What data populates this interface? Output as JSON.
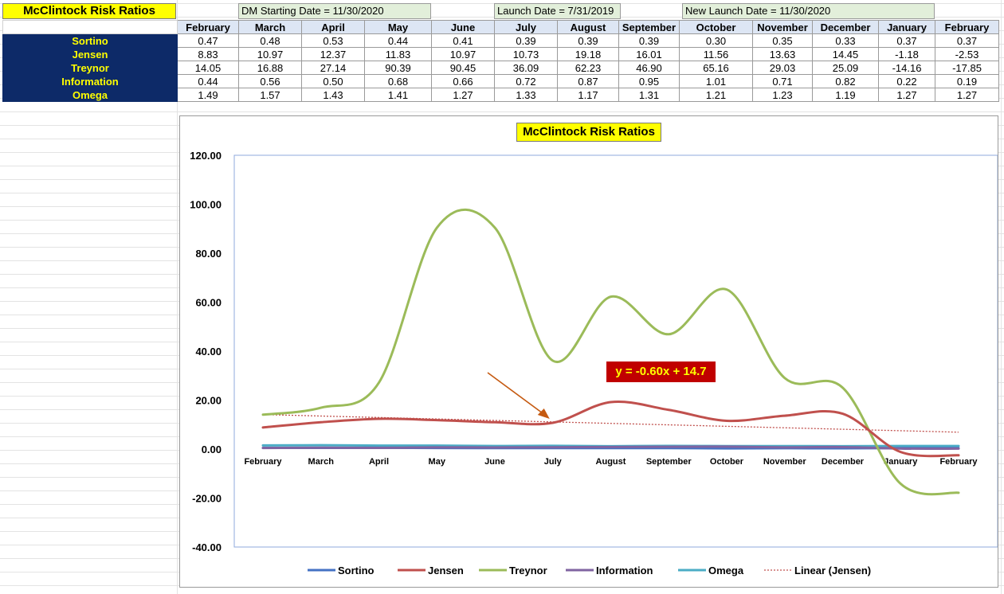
{
  "sheet": {
    "title": "McClintock Risk Ratios",
    "info": {
      "dm_start": "DM Starting Date = 11/30/2020",
      "launch": "Launch Date = 7/31/2019",
      "new_launch": "New Launch Date = 11/30/2020"
    },
    "months": [
      "February",
      "March",
      "April",
      "May",
      "June",
      "July",
      "August",
      "September",
      "October",
      "November",
      "December",
      "January",
      "February"
    ],
    "rows": [
      {
        "label": "Sortino",
        "values": [
          "0.47",
          "0.48",
          "0.53",
          "0.44",
          "0.41",
          "0.39",
          "0.39",
          "0.39",
          "0.30",
          "0.35",
          "0.33",
          "0.37",
          "0.37"
        ]
      },
      {
        "label": "Jensen",
        "values": [
          "8.83",
          "10.97",
          "12.37",
          "11.83",
          "10.97",
          "10.73",
          "19.18",
          "16.01",
          "11.56",
          "13.63",
          "14.45",
          "-1.18",
          "-2.53"
        ]
      },
      {
        "label": "Treynor",
        "values": [
          "14.05",
          "16.88",
          "27.14",
          "90.39",
          "90.45",
          "36.09",
          "62.23",
          "46.90",
          "65.16",
          "29.03",
          "25.09",
          "-14.16",
          "-17.85"
        ]
      },
      {
        "label": "Information",
        "values": [
          "0.44",
          "0.56",
          "0.50",
          "0.68",
          "0.66",
          "0.72",
          "0.87",
          "0.95",
          "1.01",
          "0.71",
          "0.82",
          "0.22",
          "0.19"
        ]
      },
      {
        "label": "Omega",
        "values": [
          "1.49",
          "1.57",
          "1.43",
          "1.41",
          "1.27",
          "1.33",
          "1.17",
          "1.31",
          "1.21",
          "1.23",
          "1.19",
          "1.27",
          "1.27"
        ]
      }
    ]
  },
  "chart_data": {
    "type": "line",
    "title": "McClintock Risk Ratios",
    "categories": [
      "February",
      "March",
      "April",
      "May",
      "June",
      "July",
      "August",
      "September",
      "October",
      "November",
      "December",
      "January",
      "February"
    ],
    "series": [
      {
        "name": "Sortino",
        "color": "#4472c4",
        "values": [
          0.47,
          0.48,
          0.53,
          0.44,
          0.41,
          0.39,
          0.39,
          0.39,
          0.3,
          0.35,
          0.33,
          0.37,
          0.37
        ]
      },
      {
        "name": "Jensen",
        "color": "#c0504d",
        "values": [
          8.83,
          10.97,
          12.37,
          11.83,
          10.97,
          10.73,
          19.18,
          16.01,
          11.56,
          13.63,
          14.45,
          -1.18,
          -2.53
        ]
      },
      {
        "name": "Treynor",
        "color": "#9bbb59",
        "values": [
          14.05,
          16.88,
          27.14,
          90.39,
          90.45,
          36.09,
          62.23,
          46.9,
          65.16,
          29.03,
          25.09,
          -14.16,
          -17.85
        ]
      },
      {
        "name": "Information",
        "color": "#8064a2",
        "values": [
          0.44,
          0.56,
          0.5,
          0.68,
          0.66,
          0.72,
          0.87,
          0.95,
          1.01,
          0.71,
          0.82,
          0.22,
          0.19
        ]
      },
      {
        "name": "Omega",
        "color": "#4bacc6",
        "values": [
          1.49,
          1.57,
          1.43,
          1.41,
          1.27,
          1.33,
          1.17,
          1.31,
          1.21,
          1.23,
          1.19,
          1.27,
          1.27
        ]
      }
    ],
    "trendline": {
      "name": "Linear (Jensen)",
      "label": "y = -0.60x + 14.7",
      "slope": -0.6,
      "intercept": 14.7,
      "color": "#c0504d"
    },
    "ylim": [
      -40,
      120
    ],
    "yticks": [
      "120.00",
      "100.00",
      "80.00",
      "60.00",
      "40.00",
      "20.00",
      "0.00",
      "-20.00",
      "-40.00"
    ],
    "legend_position": "bottom",
    "grid": false,
    "annotation_arrow_color": "#c55a11"
  }
}
